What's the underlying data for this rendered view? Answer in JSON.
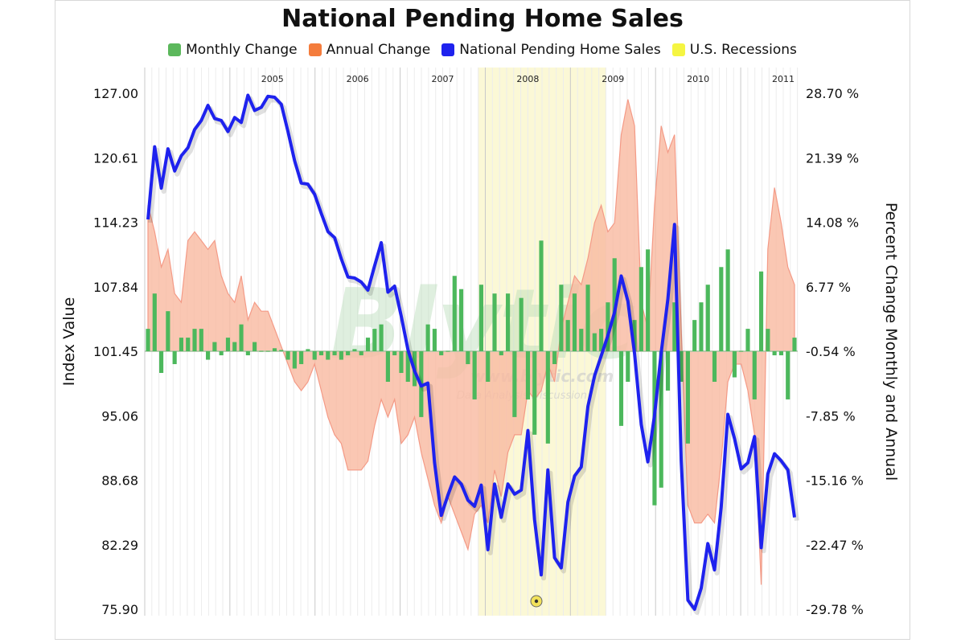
{
  "chart_data": {
    "type": "line",
    "title": "National Pending Home Sales",
    "ylabel_left": "Index Value",
    "ylabel_right": "Percent Change Monthly and Annual",
    "left_axis": {
      "min": 75.9,
      "max": 127.0,
      "ticks": [
        "127.00",
        "120.61",
        "114.23",
        "107.84",
        "101.45",
        "95.06",
        "88.68",
        "82.29",
        "75.90"
      ]
    },
    "right_axis": {
      "min": -29.78,
      "max": 28.7,
      "ticks": [
        "28.70 %",
        "21.39 %",
        "14.08 %",
        "6.77 %",
        "-0.54 %",
        "-7.85 %",
        "-15.16 %",
        "-22.47 %",
        "-29.78 %"
      ]
    },
    "x_range": [
      2004.0,
      2011.67
    ],
    "year_labels": [
      {
        "year": "2005",
        "at": 2005.5
      },
      {
        "year": "2006",
        "at": 2006.5
      },
      {
        "year": "2007",
        "at": 2007.5
      },
      {
        "year": "2008",
        "at": 2008.5
      },
      {
        "year": "2009",
        "at": 2009.5
      },
      {
        "year": "2010",
        "at": 2010.5
      },
      {
        "year": "2011",
        "at": 2011.5
      }
    ],
    "recession": {
      "name": "U.S. Recessions",
      "start": 2007.92,
      "end": 2009.42
    },
    "legend": [
      {
        "name": "Monthly Change",
        "color": "#5cb85c"
      },
      {
        "name": "Annual Change",
        "color": "#f47c3c"
      },
      {
        "name": "National Pending Home Sales",
        "color": "#1e22ee"
      },
      {
        "name": "U.S. Recessions",
        "color": "#f5f542"
      }
    ],
    "series": [
      {
        "name": "National Pending Home Sales",
        "axis": "left",
        "values": [
          114.5,
          121.7,
          117.6,
          121.5,
          119.3,
          120.8,
          121.6,
          123.4,
          124.3,
          125.8,
          124.5,
          124.3,
          123.2,
          124.6,
          124.1,
          126.8,
          125.3,
          125.6,
          126.7,
          126.6,
          125.9,
          123.2,
          120.3,
          118.1,
          118.0,
          117.0,
          115.1,
          113.3,
          112.7,
          110.6,
          108.8,
          108.7,
          108.3,
          107.5,
          109.9,
          112.2,
          107.3,
          107.9,
          104.9,
          101.6,
          99.5,
          98.0,
          98.3,
          90.4,
          85.2,
          87.2,
          89.0,
          88.3,
          86.7,
          86.1,
          88.2,
          81.8,
          88.3,
          85.0,
          88.3,
          87.3,
          87.7,
          93.6,
          84.8,
          79.3,
          89.7,
          81.0,
          80.0,
          86.5,
          89.1,
          90.0,
          96.0,
          99.0,
          101.0,
          103.0,
          105.3,
          108.9,
          106.4,
          101.2,
          94.2,
          90.5,
          95.1,
          101.3,
          106.6,
          114.0,
          90.6,
          76.8,
          75.9,
          78.0,
          82.4,
          79.8,
          86.0,
          95.2,
          92.8,
          89.8,
          90.4,
          93.0,
          82.0,
          89.3,
          91.3,
          90.6,
          89.7,
          85.0
        ]
      },
      {
        "name": "Annual Change",
        "axis": "right",
        "values": [
          16.0,
          13.0,
          9.0,
          11.0,
          6.0,
          5.0,
          12.0,
          13.0,
          12.0,
          11.0,
          12.0,
          8.0,
          6.0,
          5.0,
          8.0,
          3.0,
          5.0,
          4.0,
          4.0,
          2.0,
          0.0,
          -2.0,
          -4.0,
          -5.0,
          -4.0,
          -2.0,
          -5.0,
          -8.0,
          -10.0,
          -11.0,
          -14.0,
          -14.0,
          -14.0,
          -13.0,
          -9.0,
          -6.0,
          -8.0,
          -6.0,
          -11.0,
          -10.0,
          -8.0,
          -12.0,
          -15.0,
          -18.0,
          -20.0,
          -17.0,
          -19.0,
          -21.0,
          -23.0,
          -19.0,
          -18.0,
          -20.0,
          -14.0,
          -17.0,
          -12.0,
          -10.0,
          -10.0,
          -5.0,
          -6.0,
          -5.0,
          -2.0,
          -4.0,
          2.0,
          5.0,
          8.0,
          7.0,
          10.0,
          14.0,
          16.0,
          13.0,
          14.0,
          24.0,
          28.0,
          25.0,
          5.0,
          2.0,
          16.0,
          25.0,
          22.0,
          24.0,
          2.0,
          -18.0,
          -20.0,
          -20.0,
          -19.0,
          -20.0,
          -13.0,
          -4.0,
          -2.0,
          -2.0,
          -5.0,
          -10.0,
          -27.0,
          11.0,
          18.0,
          14.0,
          9.0,
          7.0
        ]
      },
      {
        "name": "Monthly Change",
        "axis": "right",
        "values": [
          2.0,
          6.0,
          -3.0,
          4.0,
          -2.0,
          1.0,
          1.0,
          2.0,
          2.0,
          -1.5,
          0.5,
          -1.0,
          1.0,
          0.5,
          2.5,
          -1.0,
          0.5,
          -0.5,
          -0.5,
          -0.2,
          -0.4,
          -1.5,
          -2.5,
          -2.0,
          -0.3,
          -1.5,
          -1.0,
          -1.5,
          -1.0,
          -1.5,
          -1.0,
          -0.3,
          -1.0,
          1.0,
          2.0,
          2.5,
          -4.0,
          -1.0,
          -3.0,
          -4.0,
          -4.5,
          -8.0,
          2.5,
          2.0,
          -1.0,
          -0.5,
          8.0,
          6.5,
          -2.0,
          -6.0,
          7.0,
          -4.0,
          6.0,
          -1.0,
          6.0,
          -8.0,
          5.5,
          -6.0,
          -10.0,
          12.0,
          -11.0,
          -2.0,
          7.0,
          3.0,
          6.0,
          2.0,
          7.0,
          1.5,
          2.0,
          5.0,
          10.0,
          -9.0,
          -4.0,
          3.0,
          9.0,
          11.0,
          -18.0,
          -16.0,
          -5.0,
          5.0,
          -4.0,
          -11.0,
          3.0,
          5.0,
          7.0,
          -4.0,
          9.0,
          11.0,
          -3.5,
          -0.5,
          2.0,
          -6.0,
          8.5,
          2.0,
          -1.0,
          -1.0,
          -6.0,
          1.0
        ]
      }
    ],
    "grid": "vertical monthly lines, zero baseline"
  },
  "watermark": {
    "text": "Blytic",
    "url": "www.blytic.com",
    "tagline": "Data Analysis Discussion"
  }
}
